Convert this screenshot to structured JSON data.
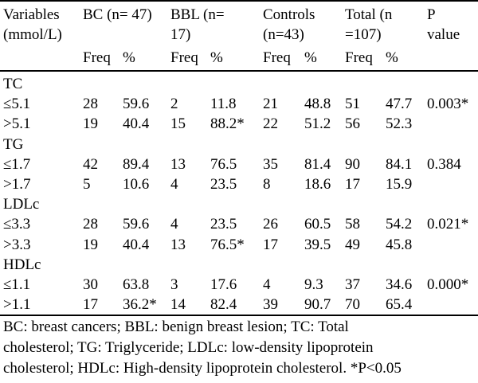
{
  "header": {
    "variables": "Variables\n(mmol/L)",
    "bc": "BC (n= 47)",
    "bbl": "BBL (n=\n17)",
    "controls": "Controls\n(n=43)",
    "total": "Total (n\n=107)",
    "p": "P\nvalue",
    "freq": "Freq",
    "pct": "%"
  },
  "rows": [
    {
      "label": "TC",
      "group": true
    },
    {
      "label": "≤5.1",
      "bc_f": "28",
      "bc_p": "59.6",
      "bbl_f": "2",
      "bbl_p": "11.8",
      "c_f": "21",
      "c_p": "48.8",
      "t_f": "51",
      "t_p": "47.7",
      "p": "0.003*"
    },
    {
      "label": ">5.1",
      "bc_f": "19",
      "bc_p": "40.4",
      "bbl_f": "15",
      "bbl_p": "88.2*",
      "c_f": "22",
      "c_p": "51.2",
      "t_f": "56",
      "t_p": "52.3",
      "p": ""
    },
    {
      "label": "TG",
      "group": true
    },
    {
      "label": "≤1.7",
      "bc_f": "42",
      "bc_p": "89.4",
      "bbl_f": "13",
      "bbl_p": "76.5",
      "c_f": "35",
      "c_p": "81.4",
      "t_f": "90",
      "t_p": "84.1",
      "p": "0.384"
    },
    {
      "label": ">1.7",
      "bc_f": "5",
      "bc_p": "10.6",
      "bbl_f": "4",
      "bbl_p": "23.5",
      "c_f": "8",
      "c_p": "18.6",
      "t_f": "17",
      "t_p": "15.9",
      "p": ""
    },
    {
      "label": "LDLc",
      "group": true
    },
    {
      "label": "≤3.3",
      "bc_f": "28",
      "bc_p": "59.6",
      "bbl_f": "4",
      "bbl_p": "23.5",
      "c_f": "26",
      "c_p": "60.5",
      "t_f": "58",
      "t_p": "54.2",
      "p": "0.021*"
    },
    {
      "label": ">3.3",
      "bc_f": "19",
      "bc_p": "40.4",
      "bbl_f": "13",
      "bbl_p": "76.5*",
      "c_f": "17",
      "c_p": "39.5",
      "t_f": "49",
      "t_p": "45.8",
      "p": ""
    },
    {
      "label": "HDLc",
      "group": true
    },
    {
      "label": "≤1.1",
      "bc_f": "30",
      "bc_p": "63.8",
      "bbl_f": "3",
      "bbl_p": "17.6",
      "c_f": "4",
      "c_p": "9.3",
      "t_f": "37",
      "t_p": "34.6",
      "p": "0.000*"
    },
    {
      "label": ">1.1",
      "bc_f": "17",
      "bc_p": "36.2*",
      "bbl_f": "14",
      "bbl_p": "82.4",
      "c_f": "39",
      "c_p": "90.7",
      "t_f": "70",
      "t_p": "65.4",
      "p": ""
    }
  ],
  "footnote": [
    "BC: breast cancers; BBL: benign breast lesion; TC: Total",
    "cholesterol; TG: Triglyceride; LDLc: low-density lipoprotein",
    "cholesterol; HDLc: High-density lipoprotein cholesterol. *P<0.05"
  ]
}
